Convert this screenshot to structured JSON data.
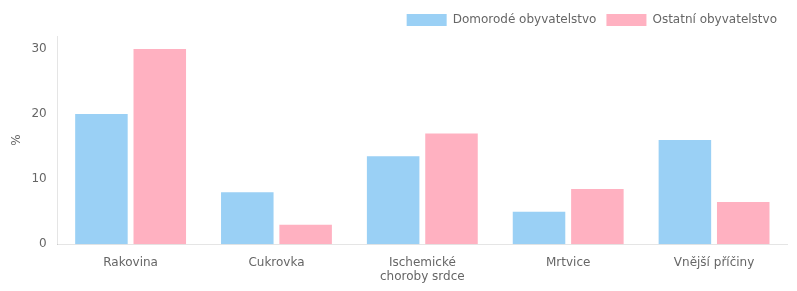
{
  "chart_data": {
    "type": "bar",
    "categories": [
      "Rakovina",
      "Cukrovka",
      "Ischemické\nchoroby srdce",
      "Mrtvice",
      "Vnější příčiny"
    ],
    "series": [
      {
        "name": "Domorodé obyvatelstvo",
        "values": [
          20,
          8,
          13.5,
          5,
          16
        ]
      },
      {
        "name": "Ostatní obyvatelstvo",
        "values": [
          30,
          3,
          17,
          8.5,
          6.5
        ]
      }
    ],
    "ylabel": "%",
    "ylim": [
      0,
      32
    ],
    "yticks": [
      0,
      10,
      20,
      30
    ],
    "grid": false,
    "legend": "upper right"
  }
}
